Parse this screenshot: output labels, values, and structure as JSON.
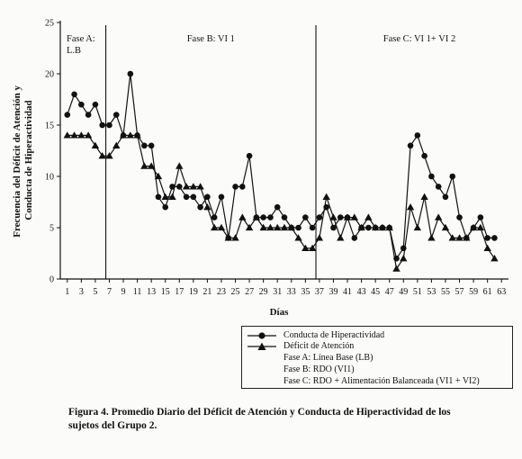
{
  "chart_data": {
    "type": "line",
    "title": "",
    "xlabel": "Días",
    "ylabel": "Frecuencia del Déficit de Atención y Conducta de Hiperactividad",
    "xlim": [
      0,
      64
    ],
    "ylim": [
      0,
      25
    ],
    "yticks": [
      0,
      5,
      10,
      15,
      20,
      25
    ],
    "xticks": [
      1,
      3,
      5,
      7,
      9,
      11,
      13,
      15,
      17,
      19,
      21,
      23,
      25,
      27,
      29,
      31,
      33,
      35,
      37,
      39,
      41,
      43,
      45,
      47,
      49,
      51,
      53,
      55,
      57,
      59,
      61,
      63
    ],
    "x": [
      1,
      2,
      3,
      4,
      5,
      6,
      7,
      8,
      9,
      10,
      11,
      12,
      13,
      14,
      15,
      16,
      17,
      18,
      19,
      20,
      21,
      22,
      23,
      24,
      25,
      26,
      27,
      28,
      29,
      30,
      31,
      32,
      33,
      34,
      35,
      36,
      37,
      38,
      39,
      40,
      41,
      42,
      43,
      44,
      45,
      46,
      47,
      48,
      49,
      50,
      51,
      52,
      53,
      54,
      55,
      56,
      57,
      58,
      59,
      60,
      61,
      62
    ],
    "series": [
      {
        "name": "Conducta de Hiperactividad",
        "marker": "circle",
        "values": [
          16,
          18,
          17,
          16,
          17,
          15,
          15,
          16,
          14,
          20,
          14,
          13,
          13,
          8,
          7,
          9,
          9,
          8,
          8,
          7,
          8,
          6,
          8,
          4,
          9,
          9,
          12,
          6,
          6,
          6,
          7,
          6,
          5,
          5,
          6,
          5,
          6,
          7,
          5,
          6,
          6,
          4,
          5,
          5,
          5,
          5,
          5,
          2,
          3,
          13,
          14,
          12,
          10,
          9,
          8,
          10,
          6,
          4,
          5,
          6,
          4,
          4
        ]
      },
      {
        "name": "Déficit de Atención",
        "marker": "triangle",
        "values": [
          14,
          14,
          14,
          14,
          13,
          12,
          12,
          13,
          14,
          14,
          14,
          11,
          11,
          10,
          8,
          8,
          11,
          9,
          9,
          9,
          7,
          5,
          5,
          4,
          4,
          6,
          5,
          6,
          5,
          5,
          5,
          5,
          5,
          4,
          3,
          3,
          4,
          8,
          6,
          4,
          6,
          6,
          5,
          6,
          5,
          5,
          5,
          1,
          2,
          7,
          5,
          8,
          4,
          6,
          5,
          4,
          4,
          4,
          5,
          5,
          3,
          2
        ]
      }
    ],
    "phases": [
      {
        "label_lines": [
          "Fase A:",
          "L.B"
        ],
        "start": 0,
        "end": 6.5
      },
      {
        "label_lines": [
          "Fase B: VI 1"
        ],
        "start": 6.5,
        "end": 36.5
      },
      {
        "label_lines": [
          "Fase C: VI 1+ VI 2"
        ],
        "start": 36.5,
        "end": 64
      }
    ],
    "legend_position": "bottom-right",
    "grid": false
  },
  "legend": {
    "items": [
      "Conducta de Hiperactividad",
      "Déficit de Atención"
    ],
    "notes": [
      "Fase A: Línea Base (LB)",
      "Fase B: RDO (VI1)",
      "Fase C: RDO + Alimentación Balanceada (VI1 + VI2)"
    ]
  },
  "caption": "Figura 4. Promedio Diario del Déficit de Atención y Conducta de Hiperactividad de los sujetos del Grupo 2."
}
